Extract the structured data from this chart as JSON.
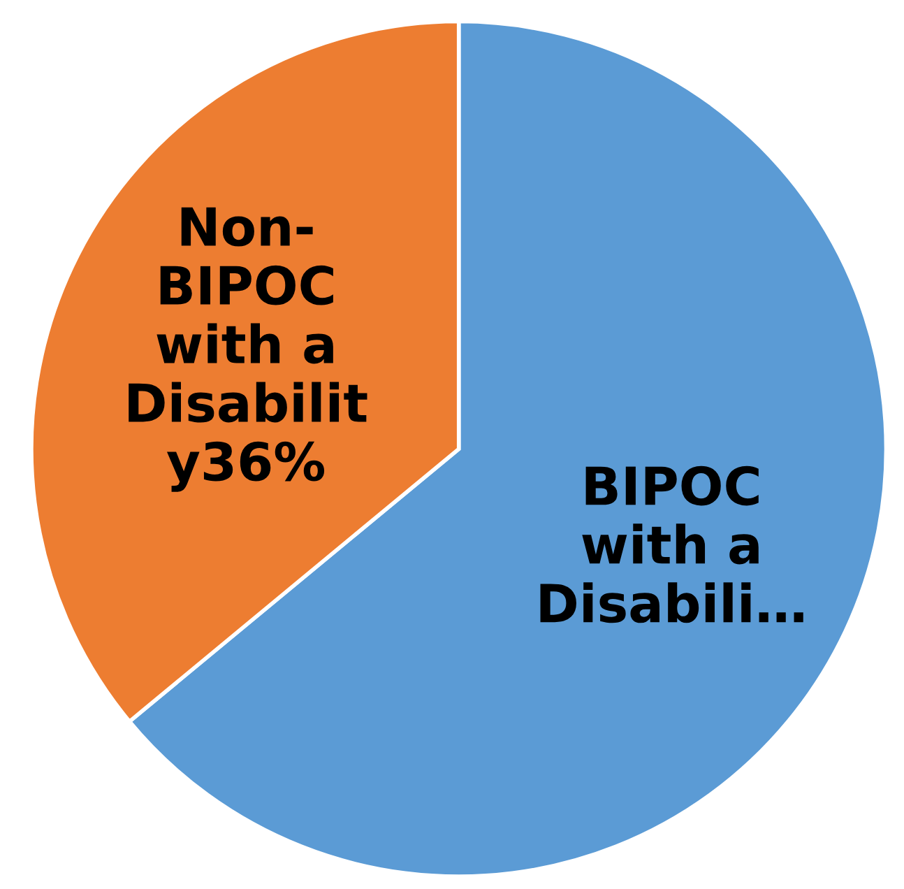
{
  "chart_data": {
    "type": "pie",
    "categories": [
      "BIPOC with a Disabili…",
      "Non-BIPOC with a Disability"
    ],
    "values": [
      64,
      36
    ],
    "value_labels": [
      null,
      "36%"
    ],
    "colors": [
      "#5b9bd5",
      "#ed7d31"
    ]
  }
}
